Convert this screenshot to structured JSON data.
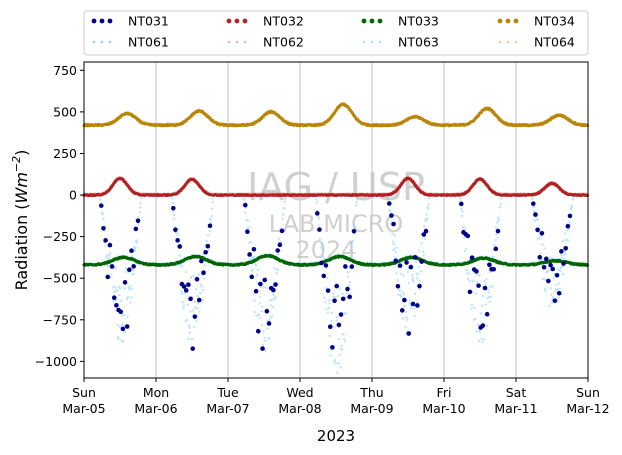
{
  "chart_data": {
    "type": "scatter",
    "xlabel": "2023",
    "ylabel_main": "Radiation (",
    "ylabel_unit_base": "Wm",
    "ylabel_unit_exp": "−2",
    "ylabel_close": ")",
    "ylim": [
      -1100,
      800
    ],
    "yticks": [
      {
        "value": 750,
        "label": "750"
      },
      {
        "value": 500,
        "label": "500"
      },
      {
        "value": 250,
        "label": "250"
      },
      {
        "value": 0,
        "label": "0"
      },
      {
        "value": -250,
        "label": "−250"
      },
      {
        "value": -500,
        "label": "−500"
      },
      {
        "value": -750,
        "label": "−750"
      },
      {
        "value": -1000,
        "label": "−1000"
      }
    ],
    "xlim": [
      "2023-03-05",
      "2023-03-12"
    ],
    "xticks": [
      {
        "day": 0,
        "weekday": "Sun",
        "date": "Mar-05"
      },
      {
        "day": 1,
        "weekday": "Mon",
        "date": "Mar-06"
      },
      {
        "day": 2,
        "weekday": "Tue",
        "date": "Mar-07"
      },
      {
        "day": 3,
        "weekday": "Wed",
        "date": "Mar-08"
      },
      {
        "day": 4,
        "weekday": "Thu",
        "date": "Mar-09"
      },
      {
        "day": 5,
        "weekday": "Fri",
        "date": "Mar-10"
      },
      {
        "day": 6,
        "weekday": "Sat",
        "date": "Mar-11"
      },
      {
        "day": 7,
        "weekday": "Sun",
        "date": "Mar-12"
      }
    ],
    "grid": "vertical",
    "legend_position": "top, above plot, 4 columns",
    "watermark": [
      "IAG / USP",
      "LAB MICRO",
      "2024"
    ],
    "series": [
      {
        "name": "NT031",
        "color": "#00008b",
        "style": "dots"
      },
      {
        "name": "NT032",
        "color": "#b22222",
        "style": "dots"
      },
      {
        "name": "NT033",
        "color": "#006400",
        "style": "dots"
      },
      {
        "name": "NT034",
        "color": "#b8860b",
        "style": "dots"
      },
      {
        "name": "NT061",
        "color": "#87cefa",
        "style": "faint-dots"
      },
      {
        "name": "NT062",
        "color": "#f4a6a6",
        "style": "faint-dots"
      },
      {
        "name": "NT063",
        "color": "#9ee8e8",
        "style": "faint-dots"
      },
      {
        "name": "NT064",
        "color": "#f5c690",
        "style": "faint-dots"
      }
    ],
    "daily_profile": {
      "incoming_longwave_baseline": 420,
      "incoming_longwave_afternoon_peak": [
        490,
        505,
        500,
        545,
        470,
        520,
        480
      ],
      "outgoing_longwave_baseline": -420,
      "outgoing_longwave_afternoon_peak": [
        -375,
        -370,
        -365,
        -370,
        -375,
        -380,
        -395
      ],
      "net_night": 0,
      "net_day_peak": [
        100,
        95,
        0,
        0,
        100,
        95,
        70
      ],
      "shortwave_day_min": [
        -860,
        -880,
        -910,
        -1040,
        -800,
        -870,
        -660
      ]
    }
  }
}
